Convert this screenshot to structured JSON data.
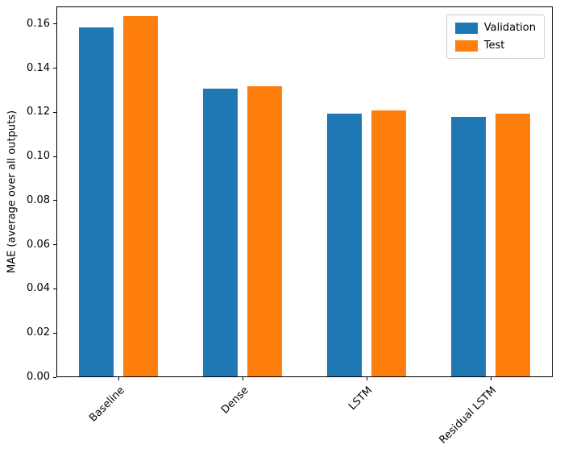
{
  "figure": {
    "background": "#ffffff"
  },
  "chart_data": {
    "type": "bar",
    "title": "",
    "categories": [
      "Baseline",
      "Dense",
      "LSTM",
      "Residual LSTM"
    ],
    "series": [
      {
        "name": "Validation",
        "color": "#1f77b4",
        "values": [
          0.159,
          0.131,
          0.1195,
          0.118
        ]
      },
      {
        "name": "Test",
        "color": "#ff7f0e",
        "values": [
          0.164,
          0.132,
          0.121,
          0.1195
        ]
      }
    ],
    "xlabel": "",
    "ylabel": "MAE (average over all outputs)",
    "ylim": [
      0,
      0.168
    ],
    "ytick_step": 0.02,
    "ytick_labels": [
      "0.00",
      "0.02",
      "0.04",
      "0.06",
      "0.08",
      "0.10",
      "0.12",
      "0.14",
      "0.16"
    ],
    "legend": {
      "entries": [
        "Validation",
        "Test"
      ],
      "position": "upper right"
    },
    "grid": false,
    "bar_width_units": 0.28,
    "bar_offset_units": 0.178,
    "x_tick_rotation_deg": 45
  }
}
